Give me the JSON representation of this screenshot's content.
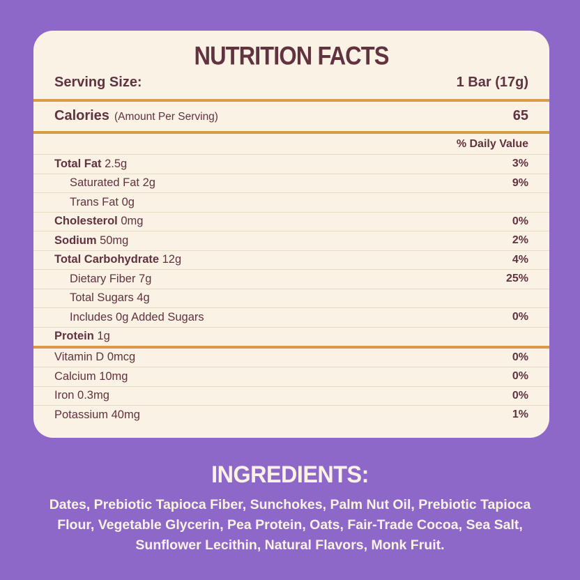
{
  "colors": {
    "background": "#8d68c9",
    "card": "#faf2e4",
    "text": "#613240",
    "gold_rule": "#d89a44",
    "row_divider": "#e8dbc5"
  },
  "label": {
    "title": "NUTRITION FACTS",
    "serving_size_label": "Serving Size:",
    "serving_size_value": "1 Bar (17g)",
    "calories_label": "Calories",
    "calories_note": "(Amount Per Serving)",
    "calories_value": "65",
    "daily_value_header": "% Daily Value",
    "rows": [
      {
        "label": "Total Fat",
        "amount": "2.5g",
        "daily_value": "3%",
        "bold": true,
        "indent": 0
      },
      {
        "label": "Saturated Fat",
        "amount": "2g",
        "daily_value": "9%",
        "bold": false,
        "indent": 1
      },
      {
        "label": "Trans Fat",
        "amount": "0g",
        "daily_value": "",
        "bold": false,
        "indent": 1
      },
      {
        "label": "Cholesterol",
        "amount": "0mg",
        "daily_value": "0%",
        "bold": true,
        "indent": 0
      },
      {
        "label": "Sodium",
        "amount": "50mg",
        "daily_value": "2%",
        "bold": true,
        "indent": 0
      },
      {
        "label": "Total Carbohydrate",
        "amount": "12g",
        "daily_value": "4%",
        "bold": true,
        "indent": 0
      },
      {
        "label": "Dietary Fiber",
        "amount": "7g",
        "daily_value": "25%",
        "bold": false,
        "indent": 1
      },
      {
        "label": "Total Sugars",
        "amount": "4g",
        "daily_value": "",
        "bold": false,
        "indent": 1
      },
      {
        "label": "Includes 0g Added Sugars",
        "amount": "",
        "daily_value": "0%",
        "bold": false,
        "indent": 1
      },
      {
        "label": "Protein",
        "amount": "1g",
        "daily_value": "",
        "bold": true,
        "indent": 0,
        "rule_after": true
      },
      {
        "label": "Vitamin D",
        "amount": "0mcg",
        "daily_value": "0%",
        "bold": false,
        "indent": 0
      },
      {
        "label": "Calcium",
        "amount": "10mg",
        "daily_value": "0%",
        "bold": false,
        "indent": 0
      },
      {
        "label": "Iron",
        "amount": "0.3mg",
        "daily_value": "0%",
        "bold": false,
        "indent": 0
      },
      {
        "label": "Potassium",
        "amount": "40mg",
        "daily_value": "1%",
        "bold": false,
        "indent": 0
      }
    ]
  },
  "ingredients": {
    "heading": "INGREDIENTS:",
    "text": "Dates, Prebiotic Tapioca Fiber, Sunchokes, Palm Nut Oil, Prebiotic Tapioca Flour, Vegetable Glycerin, Pea Protein, Oats, Fair-Trade Cocoa, Sea Salt, Sunflower Lecithin, Natural Flavors, Monk Fruit."
  }
}
